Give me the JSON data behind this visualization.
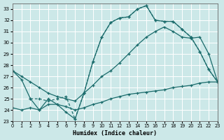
{
  "xlabel": "Humidex (Indice chaleur)",
  "xlim": [
    0,
    23
  ],
  "ylim": [
    23,
    33.5
  ],
  "yticks": [
    23,
    24,
    25,
    26,
    27,
    28,
    29,
    30,
    31,
    32,
    33
  ],
  "xticks": [
    0,
    1,
    2,
    3,
    4,
    5,
    6,
    7,
    8,
    9,
    10,
    11,
    12,
    13,
    14,
    15,
    16,
    17,
    18,
    19,
    20,
    21,
    22,
    23
  ],
  "bg_color": "#cce8e8",
  "grid_color": "#ffffff",
  "line_color": "#1a6b6b",
  "line1_x": [
    0,
    1,
    2,
    3,
    4,
    5,
    6,
    7,
    8,
    9,
    10,
    11,
    12,
    13,
    14,
    15,
    16,
    17,
    18,
    19,
    20,
    21,
    22,
    23
  ],
  "line1_y": [
    27.5,
    26.7,
    25.0,
    24.0,
    25.0,
    24.5,
    23.8,
    23.2,
    25.5,
    28.3,
    30.5,
    31.8,
    32.2,
    32.3,
    33.0,
    33.3,
    32.0,
    31.9,
    31.9,
    31.2,
    30.5,
    29.2,
    27.6,
    26.5
  ],
  "line2_x": [
    0,
    1,
    2,
    3,
    4,
    5,
    6,
    7,
    8,
    9,
    10,
    11,
    12,
    13,
    14,
    15,
    16,
    17,
    18,
    19,
    20,
    21,
    22,
    23
  ],
  "line2_y": [
    27.5,
    27.0,
    26.5,
    26.0,
    25.5,
    25.2,
    25.0,
    24.8,
    25.5,
    26.2,
    27.0,
    27.5,
    28.2,
    29.0,
    29.8,
    30.5,
    31.0,
    31.4,
    31.0,
    30.5,
    30.4,
    30.5,
    29.0,
    26.5
  ],
  "line3_x": [
    0,
    1,
    2,
    3,
    4,
    5,
    6,
    7,
    8,
    9,
    10,
    11,
    12,
    13,
    14,
    15,
    16,
    17,
    18,
    19,
    20,
    21,
    22,
    23
  ],
  "line3_y": [
    24.2,
    24.0,
    24.2,
    24.0,
    24.5,
    24.5,
    24.3,
    24.0,
    24.2,
    24.5,
    24.7,
    25.0,
    25.2,
    25.4,
    25.5,
    25.6,
    25.7,
    25.8,
    26.0,
    26.1,
    26.2,
    26.4,
    26.5,
    26.5
  ],
  "line4_x": [
    2,
    3,
    4,
    5,
    6,
    7,
    8,
    9,
    10,
    11,
    12,
    13,
    14,
    15,
    16,
    17,
    18,
    19,
    20,
    21,
    22,
    23
  ],
  "line4_y": [
    25.0,
    25.0,
    24.8,
    25.0,
    25.2,
    23.2,
    25.5,
    28.3,
    30.5,
    31.8,
    32.2,
    32.3,
    33.0,
    33.3,
    32.0,
    31.9,
    31.9,
    31.2,
    30.5,
    29.2,
    27.6,
    26.5
  ],
  "line4_style": "--"
}
